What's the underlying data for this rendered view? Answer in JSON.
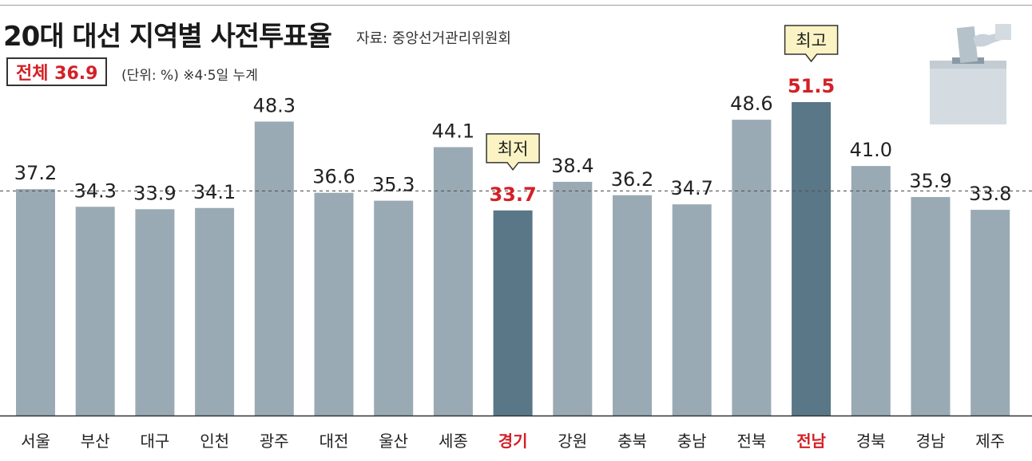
{
  "header": {
    "title": "20대 대선 지역별 사전투표율",
    "source": "자료: 중앙선거관리위원회",
    "total_label": "전체 36.9",
    "unit_note": "(단위: %) ※4·5일 누계"
  },
  "colors": {
    "bar": "#9aaab4",
    "bar_highlight": "#5a7787",
    "highlight_text": "#d32027",
    "callout_fill": "#fbf3c4"
  },
  "chart_data": {
    "type": "bar",
    "title": "20대 대선 지역별 사전투표율",
    "categories": [
      "서울",
      "부산",
      "대구",
      "인천",
      "광주",
      "대전",
      "울산",
      "세종",
      "경기",
      "강원",
      "충북",
      "충남",
      "전북",
      "전남",
      "경북",
      "경남",
      "제주"
    ],
    "values": [
      37.2,
      34.3,
      33.9,
      34.1,
      48.3,
      36.6,
      35.3,
      44.1,
      33.7,
      38.4,
      36.2,
      34.7,
      48.6,
      51.5,
      41.0,
      35.9,
      33.8
    ],
    "value_labels": [
      "37.2",
      "34.3",
      "33.9",
      "34.1",
      "48.3",
      "36.6",
      "35.3",
      "44.1",
      "33.7",
      "38.4",
      "36.2",
      "34.7",
      "48.6",
      "51.5",
      "41.0",
      "35.9",
      "33.8"
    ],
    "reference_line": 36.9,
    "highlights": [
      {
        "category": "경기",
        "label": "최저"
      },
      {
        "category": "전남",
        "label": "최고"
      }
    ],
    "xlabel": "",
    "ylabel": "",
    "ylim": [
      0,
      51.5
    ],
    "unit": "%"
  }
}
